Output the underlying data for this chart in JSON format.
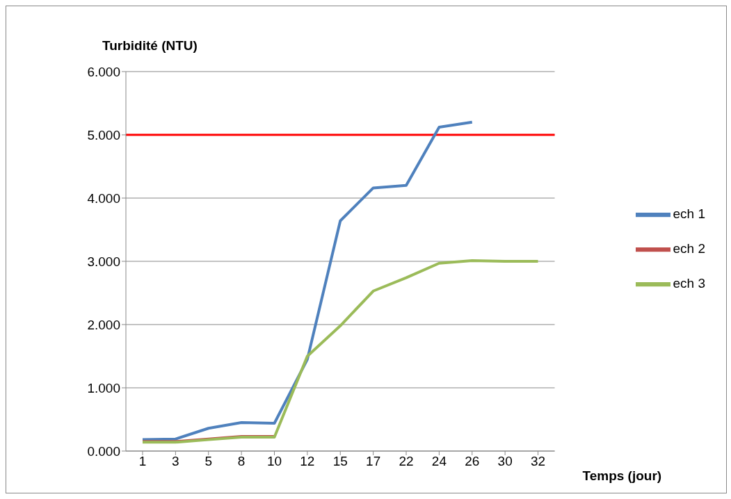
{
  "chart_data": {
    "type": "line",
    "ylabel": "Turbidité (NTU)",
    "xlabel": "Temps (jour)",
    "categories": [
      "1",
      "3",
      "5",
      "8",
      "10",
      "12",
      "15",
      "17",
      "22",
      "24",
      "26",
      "30",
      "32"
    ],
    "series": [
      {
        "name": "ech 1",
        "color": "#4f81bd",
        "values": [
          0.18,
          0.19,
          0.36,
          0.45,
          0.44,
          1.45,
          3.64,
          4.16,
          4.2,
          5.12,
          5.2,
          null,
          null
        ]
      },
      {
        "name": "ech 2",
        "color": "#c0504d",
        "values": [
          0.15,
          0.15,
          0.19,
          0.23,
          0.23,
          null,
          null,
          null,
          null,
          null,
          null,
          null,
          null
        ]
      },
      {
        "name": "ech 3",
        "color": "#9bbb59",
        "values": [
          0.14,
          0.14,
          0.18,
          0.22,
          0.22,
          1.5,
          1.98,
          2.53,
          2.74,
          2.97,
          3.01,
          3.0,
          3.0
        ]
      }
    ],
    "ylim": [
      0,
      6
    ],
    "yticks": [
      {
        "value": 0,
        "label": "0.000"
      },
      {
        "value": 1,
        "label": "1.000"
      },
      {
        "value": 2,
        "label": "2.000"
      },
      {
        "value": 3,
        "label": "3.000"
      },
      {
        "value": 4,
        "label": "4.000"
      },
      {
        "value": 5,
        "label": "5.000"
      },
      {
        "value": 6,
        "label": "6.000"
      }
    ],
    "ref_lines": [
      {
        "axis": "y",
        "value": 5,
        "label": null,
        "color": "#ff0000"
      }
    ],
    "grid": "y",
    "legend": "right",
    "marker": "none",
    "line_style": "solid"
  }
}
